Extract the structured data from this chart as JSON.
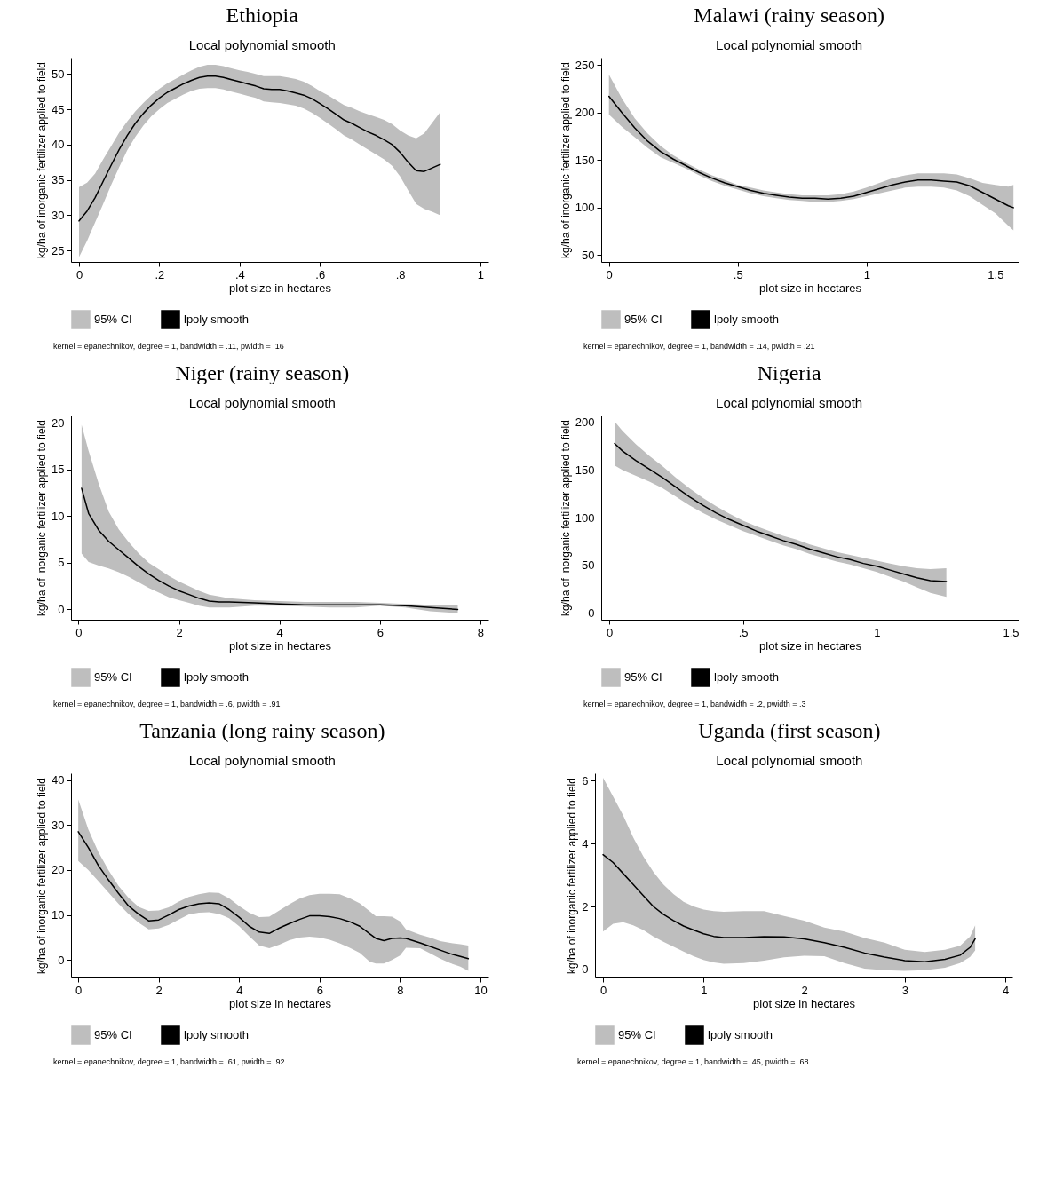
{
  "chart_data": [
    {
      "type": "line",
      "title": "Ethiopia",
      "subtitle": "Local polynomial smooth",
      "xlabel": "plot size in hectares",
      "ylabel": "kg/ha of inorganic fertilizer applied to field",
      "annotations": [
        "kernel = epanechnikov, degree = 1, bandwidth = .11, pwidth = .16"
      ],
      "legend": "bottom",
      "xlim": [
        -0.02,
        1.02
      ],
      "ylim": [
        23.4,
        52.3
      ],
      "xticks": [
        0,
        {
          "value": 0.2,
          "label": ".2"
        },
        {
          "value": 0.4,
          "label": ".4"
        },
        {
          "value": 0.6,
          "label": ".6"
        },
        {
          "value": 0.8,
          "label": ".8"
        },
        1
      ],
      "yticks": [
        25,
        30,
        35,
        40,
        45,
        50
      ],
      "x": [
        0,
        0.02,
        0.04,
        0.06,
        0.08,
        0.1,
        0.12,
        0.14,
        0.16,
        0.18,
        0.2,
        0.22,
        0.24,
        0.26,
        0.28,
        0.3,
        0.32,
        0.34,
        0.36,
        0.38,
        0.4,
        0.42,
        0.44,
        0.46,
        0.48,
        0.5,
        0.52,
        0.54,
        0.56,
        0.58,
        0.6,
        0.62,
        0.64,
        0.66,
        0.68,
        0.7,
        0.72,
        0.74,
        0.76,
        0.78,
        0.8,
        0.82,
        0.84,
        0.86,
        0.88,
        0.9
      ],
      "series": [
        {
          "name": "95% CI",
          "type": "area",
          "color": "#bebebe",
          "values": [
            null,
            null,
            null,
            null,
            null,
            null,
            null,
            null,
            null,
            null,
            null,
            null,
            null,
            null,
            null,
            null,
            null,
            null,
            null,
            null,
            null,
            null,
            null,
            null,
            null,
            null,
            null,
            null,
            null,
            null,
            null,
            null,
            null,
            null,
            null,
            null,
            null,
            null,
            null,
            null,
            null,
            null,
            null,
            null,
            null,
            null
          ]
        },
        {
          "name": "lpoly smooth",
          "type": "line",
          "color": "#000000",
          "values": [
            29.2,
            30.6,
            32.5,
            34.8,
            37.1,
            39.3,
            41.3,
            43.0,
            44.4,
            45.6,
            46.6,
            47.4,
            48.0,
            48.6,
            49.1,
            49.5,
            49.7,
            49.7,
            49.5,
            49.2,
            48.9,
            48.6,
            48.3,
            47.9,
            47.8,
            47.8,
            47.6,
            47.3,
            47.0,
            46.5,
            45.8,
            45.1,
            44.3,
            43.5,
            43.0,
            42.4,
            41.8,
            41.3,
            40.7,
            40.0,
            38.9,
            37.5,
            36.3,
            36.2,
            36.7,
            37.2
          ],
          "lower": [
            24.1,
            26.4,
            29.0,
            31.6,
            34.3,
            36.8,
            39.2,
            41.1,
            42.7,
            44.0,
            45.0,
            45.9,
            46.5,
            47.1,
            47.6,
            47.9,
            48.0,
            48.0,
            47.8,
            47.5,
            47.2,
            46.9,
            46.6,
            46.1,
            46.0,
            45.9,
            45.7,
            45.5,
            45.1,
            44.5,
            43.8,
            43.0,
            42.2,
            41.3,
            40.7,
            40.0,
            39.3,
            38.6,
            37.9,
            37.0,
            35.5,
            33.5,
            31.6,
            30.9,
            30.5,
            30.0
          ],
          "upper": [
            34.0,
            34.6,
            35.9,
            37.9,
            39.8,
            41.7,
            43.3,
            44.7,
            45.9,
            47.0,
            47.9,
            48.7,
            49.3,
            49.9,
            50.5,
            51.0,
            51.3,
            51.3,
            51.1,
            50.8,
            50.5,
            50.3,
            50.0,
            49.7,
            49.7,
            49.7,
            49.5,
            49.3,
            48.9,
            48.3,
            47.6,
            47.0,
            46.3,
            45.6,
            45.2,
            44.7,
            44.3,
            43.9,
            43.5,
            42.9,
            42.0,
            41.3,
            40.9,
            41.6,
            43.1,
            44.6
          ]
        }
      ]
    },
    {
      "type": "line",
      "title": "Malawi (rainy season)",
      "subtitle": "Local polynomial smooth",
      "xlabel": "plot size in hectares",
      "ylabel": "kg/ha of inorganic fertilizer applied to field",
      "annotations": [
        "kernel = epanechnikov, degree = 1, bandwidth = .14, pwidth = .21"
      ],
      "legend": "bottom",
      "xlim": [
        -0.03,
        1.59
      ],
      "ylim": [
        42.9,
        257.7
      ],
      "xticks": [
        0,
        {
          "value": 0.5,
          "label": ".5"
        },
        1,
        1.5
      ],
      "yticks": [
        50,
        100,
        150,
        200,
        250
      ],
      "x": [
        0,
        0.05,
        0.1,
        0.15,
        0.2,
        0.25,
        0.3,
        0.35,
        0.4,
        0.45,
        0.5,
        0.55,
        0.6,
        0.65,
        0.7,
        0.75,
        0.8,
        0.85,
        0.9,
        0.95,
        1.0,
        1.05,
        1.1,
        1.15,
        1.2,
        1.25,
        1.3,
        1.35,
        1.4,
        1.45,
        1.5,
        1.55,
        1.57
      ],
      "series": [
        {
          "name": "95% CI",
          "type": "area",
          "color": "#bebebe",
          "values": [
            null,
            null,
            null,
            null,
            null,
            null,
            null,
            null,
            null,
            null,
            null,
            null,
            null,
            null,
            null,
            null,
            null,
            null,
            null,
            null,
            null,
            null,
            null,
            null,
            null,
            null,
            null,
            null,
            null,
            null,
            null,
            null,
            null
          ]
        },
        {
          "name": "lpoly smooth",
          "type": "line",
          "color": "#000000",
          "values": [
            217,
            200,
            184,
            170,
            159,
            151,
            144,
            137,
            131,
            126,
            122,
            118,
            115,
            113,
            111,
            110,
            110,
            109,
            110,
            112,
            116,
            120,
            124,
            127,
            129,
            129,
            128,
            127,
            123,
            116,
            109,
            102,
            100
          ],
          "lower": [
            198,
            185,
            174,
            163,
            153,
            147,
            141,
            134,
            128,
            123,
            119,
            115,
            112,
            110,
            108,
            107,
            106,
            106,
            107,
            109,
            112,
            115,
            118,
            121,
            122,
            122,
            121,
            118,
            112,
            103,
            94,
            81,
            76
          ],
          "upper": [
            240,
            215,
            194,
            178,
            165,
            155,
            147,
            140,
            134,
            129,
            124,
            121,
            118,
            116,
            114,
            113,
            113,
            113,
            114,
            117,
            121,
            126,
            131,
            134,
            136,
            136,
            136,
            135,
            131,
            126,
            124,
            122,
            124
          ]
        }
      ]
    },
    {
      "type": "line",
      "title": "Niger (rainy season)",
      "subtitle": "Local polynomial smooth",
      "xlabel": "plot size in hectares",
      "ylabel": "kg/ha of inorganic fertilizer applied to field",
      "annotations": [
        "kernel = epanechnikov, degree = 1, bandwidth = .6, pwidth = .91"
      ],
      "legend": "bottom",
      "xlim": [
        -0.15,
        8.16
      ],
      "ylim": [
        -1.1,
        20.8
      ],
      "xticks": [
        0,
        2,
        4,
        6,
        8
      ],
      "yticks": [
        0,
        5,
        10,
        15,
        20
      ],
      "x": [
        0.06,
        0.2,
        0.4,
        0.6,
        0.8,
        1.0,
        1.2,
        1.4,
        1.6,
        1.8,
        2.0,
        2.2,
        2.4,
        2.6,
        2.8,
        3.0,
        3.5,
        4.0,
        4.5,
        5.0,
        5.5,
        6.0,
        6.5,
        7.0,
        7.55
      ],
      "series": [
        {
          "name": "95% CI",
          "type": "area",
          "color": "#bebebe",
          "values": [
            null,
            null,
            null,
            null,
            null,
            null,
            null,
            null,
            null,
            null,
            null,
            null,
            null,
            null,
            null,
            null,
            null,
            null,
            null,
            null,
            null,
            null,
            null,
            null,
            null
          ]
        },
        {
          "name": "lpoly smooth",
          "type": "line",
          "color": "#000000",
          "values": [
            13,
            10.3,
            8.5,
            7.3,
            6.4,
            5.5,
            4.6,
            3.8,
            3.1,
            2.5,
            2.0,
            1.6,
            1.2,
            0.9,
            0.8,
            0.8,
            0.7,
            0.6,
            0.5,
            0.5,
            0.5,
            0.5,
            0.4,
            0.2,
            0.0
          ],
          "lower": [
            6.0,
            5.1,
            4.7,
            4.4,
            4.0,
            3.5,
            2.9,
            2.3,
            1.8,
            1.3,
            1.0,
            0.7,
            0.4,
            0.2,
            0.2,
            0.2,
            0.4,
            0.4,
            0.3,
            0.2,
            0.2,
            0.4,
            0.2,
            -0.2,
            -0.4
          ],
          "upper": [
            19.8,
            17,
            13.5,
            10.5,
            8.6,
            7.2,
            6.0,
            5.0,
            4.3,
            3.6,
            3.0,
            2.5,
            2.0,
            1.6,
            1.4,
            1.2,
            1.0,
            0.9,
            0.8,
            0.8,
            0.8,
            0.7,
            0.6,
            0.5,
            0.5
          ]
        }
      ]
    },
    {
      "type": "line",
      "title": "Nigeria",
      "subtitle": "Local polynomial smooth",
      "xlabel": "plot size in hectares",
      "ylabel": "kg/ha of inorganic fertilizer applied to field",
      "annotations": [
        "kernel = epanechnikov, degree = 1, bandwidth = .2, pwidth = .3"
      ],
      "legend": "bottom",
      "xlim": [
        -0.03,
        1.53
      ],
      "ylim": [
        -7.1,
        207.4
      ],
      "xticks": [
        0,
        {
          "value": 0.5,
          "label": ".5"
        },
        1,
        1.5
      ],
      "yticks": [
        0,
        50,
        100,
        150,
        200
      ],
      "x": [
        0.02,
        0.05,
        0.1,
        0.15,
        0.2,
        0.25,
        0.3,
        0.35,
        0.4,
        0.45,
        0.5,
        0.55,
        0.6,
        0.65,
        0.7,
        0.75,
        0.8,
        0.85,
        0.9,
        0.95,
        1.0,
        1.05,
        1.1,
        1.15,
        1.2,
        1.26
      ],
      "series": [
        {
          "name": "95% CI",
          "type": "area",
          "color": "#bebebe",
          "values": [
            null,
            null,
            null,
            null,
            null,
            null,
            null,
            null,
            null,
            null,
            null,
            null,
            null,
            null,
            null,
            null,
            null,
            null,
            null,
            null,
            null,
            null,
            null,
            null,
            null,
            null
          ]
        },
        {
          "name": "lpoly smooth",
          "type": "line",
          "color": "#000000",
          "values": [
            178,
            170,
            160,
            151,
            142,
            132,
            122,
            113,
            105,
            98,
            92,
            86,
            81,
            76,
            72,
            67,
            63,
            59,
            56,
            52,
            49,
            45,
            41,
            37,
            34,
            33
          ],
          "lower": [
            155,
            150,
            144,
            138,
            131,
            122,
            113,
            105,
            98,
            92,
            86,
            81,
            76,
            71,
            67,
            62,
            58,
            54,
            51,
            47,
            43,
            38,
            33,
            27,
            21,
            17
          ],
          "upper": [
            201,
            191,
            177,
            165,
            154,
            142,
            131,
            121,
            112,
            104,
            97,
            91,
            86,
            81,
            77,
            72,
            68,
            64,
            61,
            58,
            55,
            52,
            49,
            47,
            46,
            47
          ]
        }
      ]
    },
    {
      "type": "line",
      "title": "Tanzania (long rainy season)",
      "subtitle": "Local polynomial smooth",
      "xlabel": "plot size in hectares",
      "ylabel": "kg/ha of inorganic fertilizer applied to field",
      "annotations": [
        "kernel = epanechnikov, degree = 1, bandwidth = .61, pwidth = .92"
      ],
      "legend": "bottom",
      "xlim": [
        -0.18,
        10.2
      ],
      "ylim": [
        -3.9,
        41.5
      ],
      "xticks": [
        0,
        2,
        4,
        6,
        8,
        10
      ],
      "yticks": [
        0,
        10,
        20,
        30,
        40
      ],
      "x": [
        0,
        0.25,
        0.5,
        0.75,
        1,
        1.25,
        1.5,
        1.75,
        2,
        2.25,
        2.5,
        2.75,
        3,
        3.25,
        3.5,
        3.75,
        4,
        4.25,
        4.5,
        4.75,
        5,
        5.25,
        5.5,
        5.75,
        6,
        6.25,
        6.5,
        6.75,
        7,
        7.25,
        7.4,
        7.6,
        7.8,
        8,
        8.15,
        8.5,
        8.75,
        9,
        9.25,
        9.5,
        9.7
      ],
      "series": [
        {
          "name": "95% CI",
          "type": "area",
          "color": "#bebebe",
          "values": [
            null,
            null,
            null,
            null,
            null,
            null,
            null,
            null,
            null,
            null,
            null,
            null,
            null,
            null,
            null,
            null,
            null,
            null,
            null,
            null,
            null,
            null,
            null,
            null,
            null,
            null,
            null,
            null,
            null,
            null,
            null,
            null,
            null,
            null,
            null,
            null,
            null,
            null,
            null,
            null,
            null
          ]
        },
        {
          "name": "lpoly smooth",
          "type": "line",
          "color": "#000000",
          "values": [
            28.5,
            25,
            21,
            17.8,
            14.8,
            12,
            10.2,
            8.7,
            8.9,
            10,
            11.2,
            12,
            12.5,
            12.7,
            12.5,
            11.2,
            9.5,
            7.5,
            6.2,
            5.9,
            7.1,
            8.1,
            9,
            9.8,
            9.8,
            9.6,
            9.2,
            8.5,
            7.5,
            5.8,
            4.8,
            4.3,
            4.8,
            4.9,
            4.8,
            3.8,
            3.0,
            2.2,
            1.4,
            0.8,
            0.3
          ],
          "lower": [
            22,
            20,
            17.5,
            15,
            12.5,
            10.2,
            8.3,
            6.8,
            7,
            7.8,
            9,
            10.1,
            10.5,
            10.6,
            10.2,
            9.3,
            7.5,
            5.3,
            3.2,
            2.6,
            3.4,
            4.4,
            5,
            5.2,
            5,
            4.5,
            3.7,
            2.7,
            1.6,
            -0.4,
            -0.8,
            -0.8,
            0,
            1,
            2.7,
            2.6,
            1.5,
            0.3,
            -0.7,
            -1.5,
            -2.4
          ],
          "upper": [
            35.7,
            29,
            24,
            20,
            16.5,
            13.8,
            11.8,
            10.9,
            11,
            11.7,
            13,
            14,
            14.6,
            15,
            14.9,
            13.7,
            12,
            10.5,
            9.5,
            9.6,
            11,
            12.4,
            13.6,
            14.4,
            14.7,
            14.7,
            14.6,
            13.7,
            12.6,
            10.8,
            9.7,
            9.7,
            9.6,
            8.6,
            6.8,
            5.6,
            5,
            4.2,
            3.8,
            3.5,
            3.2
          ]
        }
      ]
    },
    {
      "type": "line",
      "title": "Uganda (first season)",
      "subtitle": "Local polynomial smooth",
      "xlabel": "plot size in hectares",
      "ylabel": "kg/ha of inorganic fertilizer applied to field",
      "annotations": [
        "kernel = epanechnikov, degree = 1, bandwidth = .45, pwidth = .68"
      ],
      "legend": "bottom",
      "xlim": [
        -0.08,
        4.07
      ],
      "ylim": [
        -0.26,
        6.24
      ],
      "xticks": [
        0,
        1,
        2,
        3,
        4
      ],
      "yticks": [
        0,
        2,
        4,
        6
      ],
      "x": [
        0,
        0.1,
        0.2,
        0.3,
        0.4,
        0.5,
        0.6,
        0.7,
        0.8,
        0.9,
        1.0,
        1.1,
        1.2,
        1.4,
        1.6,
        1.8,
        2.0,
        2.2,
        2.4,
        2.6,
        2.8,
        3.0,
        3.2,
        3.4,
        3.55,
        3.65,
        3.7
      ],
      "series": [
        {
          "name": "95% CI",
          "type": "area",
          "color": "#bebebe",
          "values": [
            null,
            null,
            null,
            null,
            null,
            null,
            null,
            null,
            null,
            null,
            null,
            null,
            null,
            null,
            null,
            null,
            null,
            null,
            null,
            null,
            null,
            null,
            null,
            null,
            null,
            null,
            null
          ]
        },
        {
          "name": "lpoly smooth",
          "type": "line",
          "color": "#000000",
          "values": [
            3.65,
            3.4,
            3.05,
            2.7,
            2.35,
            2.0,
            1.75,
            1.55,
            1.38,
            1.25,
            1.13,
            1.05,
            1.01,
            1.01,
            1.04,
            1.03,
            0.97,
            0.85,
            0.7,
            0.52,
            0.39,
            0.28,
            0.24,
            0.32,
            0.45,
            0.7,
            0.97
          ],
          "lower": [
            1.2,
            1.45,
            1.5,
            1.4,
            1.25,
            1.05,
            0.88,
            0.72,
            0.57,
            0.42,
            0.3,
            0.22,
            0.18,
            0.2,
            0.28,
            0.38,
            0.43,
            0.42,
            0.2,
            0.02,
            -0.03,
            -0.05,
            -0.03,
            0.05,
            0.2,
            0.4,
            0.6
          ],
          "upper": [
            6.1,
            5.5,
            4.9,
            4.2,
            3.6,
            3.1,
            2.7,
            2.4,
            2.15,
            2.0,
            1.9,
            1.85,
            1.83,
            1.85,
            1.85,
            1.7,
            1.55,
            1.33,
            1.2,
            1.0,
            0.85,
            0.62,
            0.55,
            0.62,
            0.75,
            1.05,
            1.4
          ]
        }
      ]
    }
  ]
}
